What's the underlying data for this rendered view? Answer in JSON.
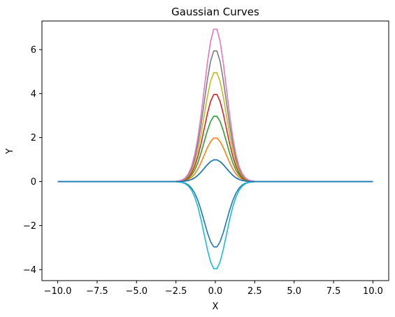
{
  "chart_data": {
    "type": "line",
    "title": "Gaussian Curves",
    "xlabel": "X",
    "ylabel": "Y",
    "xlim": [
      -11.0,
      11.0
    ],
    "ylim": [
      -4.5,
      7.3
    ],
    "xticks": [
      -10.0,
      -7.5,
      -5.0,
      -2.5,
      0.0,
      2.5,
      5.0,
      7.5,
      10.0
    ],
    "xtick_labels": [
      "−10.0",
      "−7.5",
      "−5.0",
      "−2.5",
      "0.0",
      "2.5",
      "5.0",
      "7.5",
      "10.0"
    ],
    "yticks": [
      -4,
      -2,
      0,
      2,
      4,
      6
    ],
    "ytick_labels": [
      "−4",
      "−2",
      "0",
      "2",
      "4",
      "6"
    ],
    "grid": false,
    "legend": "none",
    "x_range": [
      -10,
      10
    ],
    "num_points": 100,
    "series": [
      {
        "amplitude": 1,
        "center": 0,
        "sigma": 0.7,
        "color": "#1f77b4"
      },
      {
        "amplitude": 2,
        "center": 0,
        "sigma": 0.7,
        "color": "#ff7f0e"
      },
      {
        "amplitude": 3,
        "center": 0,
        "sigma": 0.7,
        "color": "#2ca02c"
      },
      {
        "amplitude": 4,
        "center": 0,
        "sigma": 0.7,
        "color": "#d62728"
      },
      {
        "amplitude": 5,
        "center": 0,
        "sigma": 0.7,
        "color": "#bcbd22"
      },
      {
        "amplitude": 6,
        "center": 0,
        "sigma": 0.7,
        "color": "#7f7f7f"
      },
      {
        "amplitude": 7,
        "center": 0,
        "sigma": 0.7,
        "color": "#e377c2"
      },
      {
        "amplitude": -3,
        "center": 0,
        "sigma": 0.7,
        "color": "#1f77b4"
      },
      {
        "amplitude": -4,
        "center": 0,
        "sigma": 0.7,
        "color": "#17becf"
      },
      {
        "amplitude": 1,
        "center": 0,
        "sigma": 0.7,
        "color": "#1f77b4"
      }
    ]
  }
}
